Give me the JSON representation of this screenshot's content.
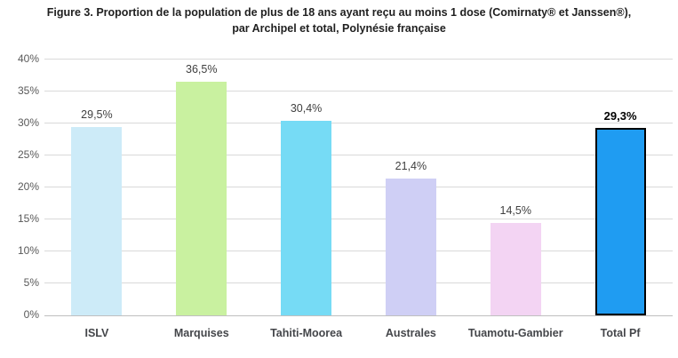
{
  "figure": {
    "title_line1": "Figure 3. Proportion de la population de plus de 18 ans ayant reçu au moins 1 dose (Comirnaty® et Janssen®),",
    "title_line2": "par Archipel et total, Polynésie française"
  },
  "chart_data": {
    "type": "bar",
    "title": "Figure 3. Proportion de la population de plus de 18 ans ayant reçu au moins 1 dose (Comirnaty® et Janssen®), par Archipel et total, Polynésie française",
    "categories": [
      "ISLV",
      "Marquises",
      "Tahiti-Moorea",
      "Australes",
      "Tuamotu-Gambier",
      "Total Pf"
    ],
    "values": [
      29.5,
      36.5,
      30.4,
      21.4,
      14.5,
      29.3
    ],
    "value_labels": [
      "29,5%",
      "36,5%",
      "30,4%",
      "21,4%",
      "14,5%",
      "29,3%"
    ],
    "bar_colors": [
      "#cdebf8",
      "#c9f1a0",
      "#76dbf5",
      "#cfcff5",
      "#f3d4f3",
      "#1f9cf2"
    ],
    "emphasized_index": 5,
    "emphasis_border_color": "#000000",
    "xlabel": "",
    "ylabel": "",
    "ylim": [
      0,
      40
    ],
    "ytick_step": 5,
    "ytick_labels": [
      "0%",
      "5%",
      "10%",
      "15%",
      "20%",
      "25%",
      "30%",
      "35%",
      "40%"
    ],
    "grid": true,
    "legend": false
  },
  "style_colors": {
    "gridline": "#d9d9d9",
    "axis_line": "#bfbfbf",
    "tick_text": "#595959",
    "value_text": "#404040",
    "title_text": "#1f1f1f"
  }
}
